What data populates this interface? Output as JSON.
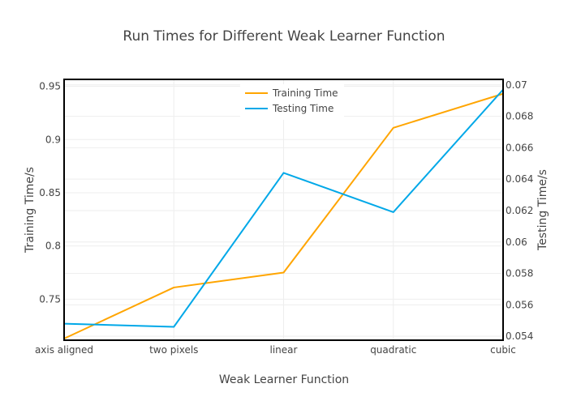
{
  "chart_data": {
    "type": "line",
    "title": "Run Times for Different Weak Learner Function",
    "xlabel": "Weak Learner Function",
    "ylabel": "Training Time/s",
    "y2label": "Testing Time/s",
    "categories": [
      "axis aligned",
      "two pixels",
      "linear",
      "quadratic",
      "cubic"
    ],
    "series": [
      {
        "name": "Training Time",
        "axis": "left",
        "color": "#FFA500",
        "values": [
          0.713,
          0.761,
          0.775,
          0.911,
          0.943
        ]
      },
      {
        "name": "Testing Time",
        "axis": "right",
        "color": "#00A8E8",
        "values": [
          0.0548,
          0.0546,
          0.0644,
          0.0619,
          0.0697
        ]
      }
    ],
    "ylim": [
      0.7115,
      0.9565
    ],
    "y2lim": [
      0.05375,
      0.07035
    ],
    "yticks": [
      0.75,
      0.8,
      0.85,
      0.9,
      0.95
    ],
    "y2ticks": [
      0.054,
      0.056,
      0.058,
      0.06,
      0.062,
      0.064,
      0.066,
      0.068,
      0.07
    ],
    "grid": true,
    "legend_position": "top-center"
  }
}
